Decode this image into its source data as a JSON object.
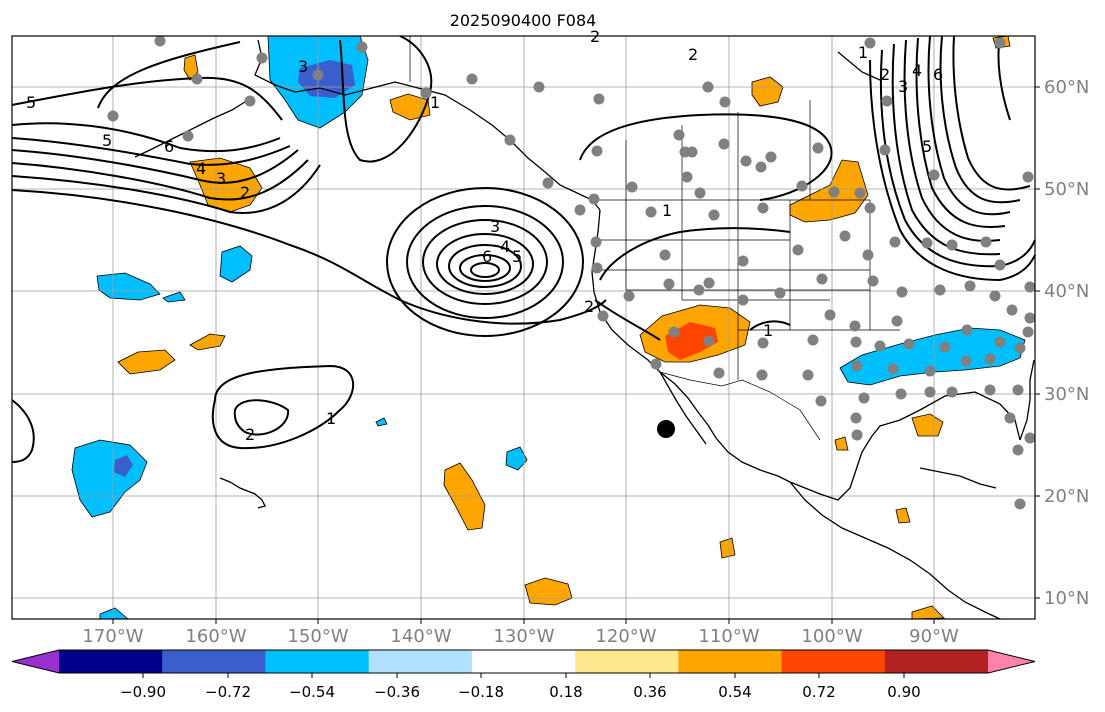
{
  "title": "2025090400 F084",
  "axes": {
    "lon_labels": [
      "170°W",
      "160°W",
      "150°W",
      "140°W",
      "130°W",
      "120°W",
      "110°W",
      "100°W",
      "90°W"
    ],
    "lat_labels": [
      "60°N",
      "50°N",
      "40°N",
      "30°N",
      "20°N",
      "10°N"
    ]
  },
  "colorbar": {
    "ticks": [
      "−0.90",
      "−0.72",
      "−0.54",
      "−0.36",
      "−0.18",
      "0.18",
      "0.36",
      "0.54",
      "0.72",
      "0.90"
    ],
    "colors": [
      "#9b30d0",
      "#00008b",
      "#3a5fcd",
      "#00bfff",
      "#b0e2ff",
      "#ffffff",
      "#fde98b",
      "#ffa500",
      "#ff4500",
      "#b22222",
      "#ff82ab"
    ]
  },
  "contour_labels": [
    "5",
    "5",
    "6",
    "4",
    "3",
    "2",
    "2",
    "3",
    "1",
    "3",
    "4",
    "5",
    "6",
    "2",
    "1",
    "1",
    "2",
    "1",
    "2",
    "1",
    "2",
    "3",
    "4",
    "6",
    "5"
  ],
  "marker": {
    "lon": -116.0,
    "lat": 26.5
  }
}
